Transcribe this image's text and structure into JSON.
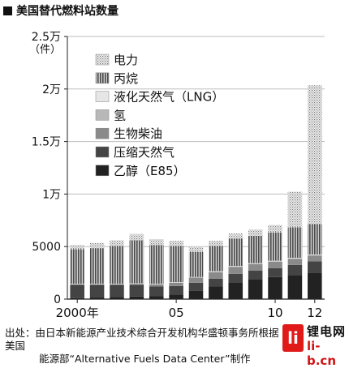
{
  "header": {
    "title": "美国替代燃料站数量"
  },
  "chart_data": {
    "type": "bar",
    "stacked": true,
    "title": "美国替代燃料站数量",
    "ylabel_unit": "（件）",
    "ylim": [
      0,
      25000
    ],
    "y_ticks": [
      {
        "value": 0,
        "label": "0"
      },
      {
        "value": 5000,
        "label": "5000"
      },
      {
        "value": 10000,
        "label": "1万"
      },
      {
        "value": 15000,
        "label": "1.5万"
      },
      {
        "value": 20000,
        "label": "2万"
      },
      {
        "value": 25000,
        "label": "2.5万"
      }
    ],
    "x": [
      2000,
      2001,
      2002,
      2003,
      2004,
      2005,
      2006,
      2007,
      2008,
      2009,
      2010,
      2011,
      2012
    ],
    "x_tick_labels": [
      {
        "year": 2000,
        "label": "2000年"
      },
      {
        "year": 2005,
        "label": "05"
      },
      {
        "year": 2010,
        "label": "10"
      },
      {
        "year": 2012,
        "label": "12"
      }
    ],
    "grid": true,
    "series": [
      {
        "name": "乙醇（E85）",
        "color": "#222222",
        "pattern": "solid",
        "values": [
          100,
          150,
          200,
          250,
          300,
          450,
          800,
          1200,
          1600,
          1900,
          2100,
          2300,
          2500
        ]
      },
      {
        "name": "压缩天然气",
        "color": "#444444",
        "pattern": "solid",
        "values": [
          1250,
          1200,
          1150,
          1100,
          900,
          800,
          750,
          750,
          800,
          800,
          850,
          950,
          1100
        ]
      },
      {
        "name": "生物柴油",
        "color": "#8a8a8a",
        "pattern": "solid",
        "values": [
          50,
          50,
          50,
          100,
          200,
          300,
          500,
          600,
          650,
          620,
          600,
          580,
          550
        ]
      },
      {
        "name": "氢",
        "color": "#b8b8b8",
        "pattern": "solid",
        "values": [
          0,
          0,
          0,
          0,
          0,
          0,
          0,
          50,
          50,
          50,
          50,
          50,
          50
        ]
      },
      {
        "name": "液化天然气（LNG）",
        "color": "#e6e6e6",
        "pattern": "solid",
        "values": [
          50,
          50,
          50,
          50,
          50,
          50,
          50,
          50,
          50,
          50,
          50,
          50,
          50
        ]
      },
      {
        "name": "丙烷",
        "color": "#555555",
        "pattern": "vstripe",
        "values": [
          3300,
          3400,
          3600,
          4100,
          3700,
          3450,
          2400,
          2400,
          2600,
          2600,
          2700,
          2900,
          2900
        ]
      },
      {
        "name": "电力",
        "color": "#bbbbbb",
        "pattern": "dots",
        "values": [
          400,
          500,
          550,
          600,
          550,
          500,
          500,
          500,
          500,
          600,
          700,
          3400,
          13200
        ]
      }
    ]
  },
  "source": {
    "line1": "出处：由日本新能源产业技术综合开发机构华盛顿事务所根据美国",
    "line2": "能源部“Alternative Fuels Data Center”制作"
  },
  "watermark": {
    "box": "li",
    "text1": "锂电网",
    "text2": "li-b.cn"
  }
}
